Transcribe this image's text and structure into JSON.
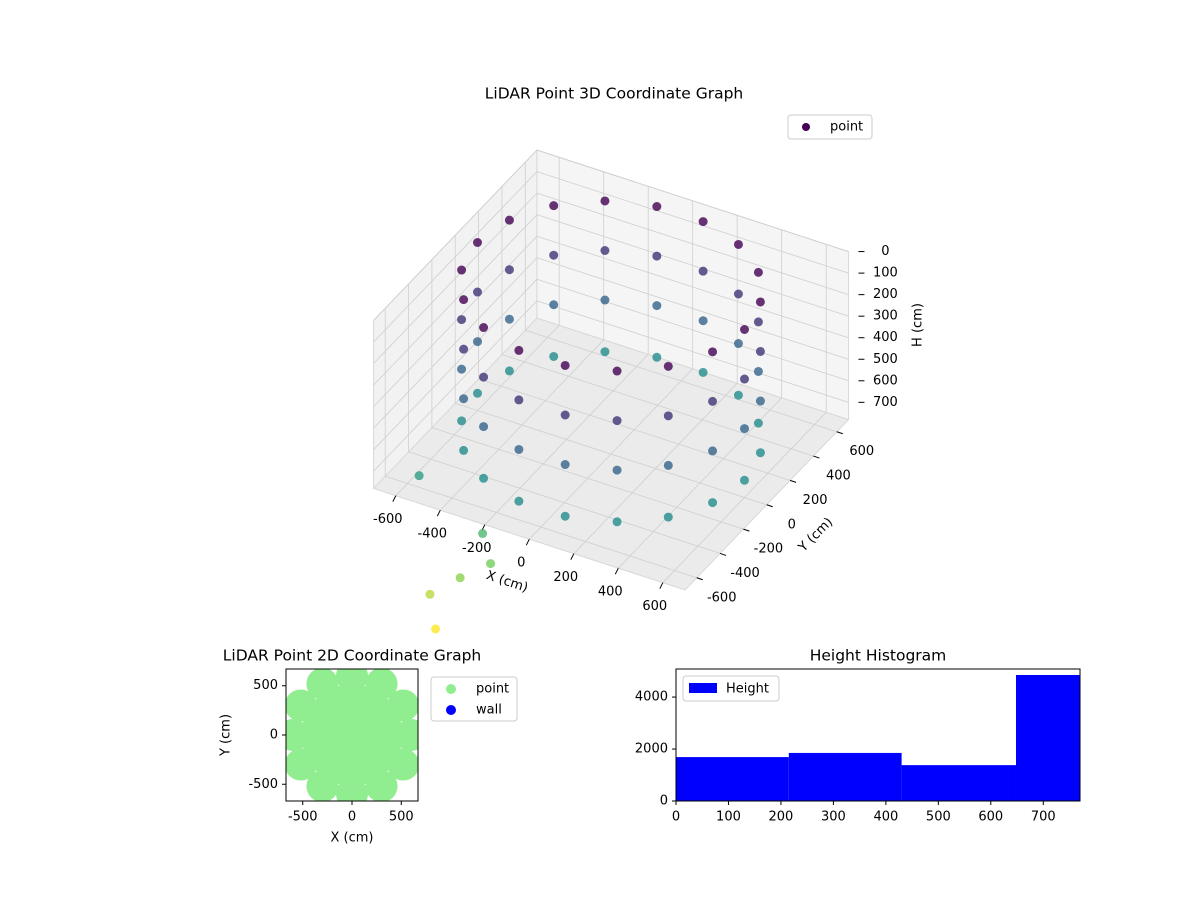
{
  "chart_data": [
    {
      "type": "scatter3d",
      "title": "LiDAR Point 3D Coordinate Graph",
      "xlabel": "X (cm)",
      "ylabel": "Y (cm)",
      "zlabel": "H (cm)",
      "series": [
        {
          "name": "point",
          "colormap": "viridis",
          "x": [
            600,
            564,
            460,
            300,
            104,
            -104,
            -300,
            -460,
            -564,
            -600,
            -564,
            -460,
            -300,
            -104,
            104,
            300,
            460,
            564,
            600,
            564,
            460,
            300,
            104,
            -104,
            -300,
            -460,
            -564,
            -600,
            -564,
            -460,
            -300,
            -104,
            104,
            300,
            460,
            564,
            600,
            564,
            460,
            300,
            104,
            -104,
            -300,
            -460,
            -564,
            -600,
            -564,
            -460,
            -300,
            -104,
            104,
            300,
            460,
            564,
            600,
            564,
            460,
            300,
            104,
            -104,
            -300,
            -460,
            -564,
            -600,
            -564,
            -460,
            -300,
            -104,
            104,
            300,
            460,
            564,
            -500,
            -520,
            -400,
            -300,
            -320,
            -600
          ],
          "y": [
            0,
            205,
            386,
            520,
            591,
            591,
            520,
            386,
            205,
            0,
            -205,
            -386,
            -520,
            -591,
            -591,
            -520,
            -386,
            -205,
            0,
            205,
            386,
            520,
            591,
            591,
            520,
            386,
            205,
            0,
            -205,
            -386,
            -520,
            -591,
            -591,
            -520,
            -386,
            -205,
            0,
            205,
            386,
            520,
            591,
            591,
            520,
            386,
            205,
            0,
            -205,
            -386,
            -520,
            -591,
            -591,
            -520,
            -386,
            -205,
            0,
            205,
            386,
            520,
            591,
            591,
            520,
            386,
            205,
            0,
            -205,
            -386,
            -520,
            -591,
            -591,
            -520,
            -386,
            -205,
            -550,
            -560,
            -530,
            -460,
            -490,
            -500
          ],
          "z": [
            0,
            0,
            0,
            0,
            0,
            0,
            0,
            0,
            0,
            0,
            0,
            0,
            0,
            0,
            0,
            0,
            0,
            0,
            230,
            230,
            230,
            230,
            230,
            230,
            230,
            230,
            230,
            230,
            230,
            230,
            230,
            230,
            230,
            230,
            230,
            230,
            460,
            460,
            460,
            460,
            460,
            460,
            460,
            460,
            460,
            460,
            460,
            460,
            460,
            460,
            460,
            460,
            460,
            460,
            700,
            700,
            700,
            700,
            700,
            700,
            700,
            700,
            700,
            700,
            700,
            700,
            700,
            700,
            700,
            700,
            700,
            700,
            1450,
            1290,
            1190,
            1130,
            980,
            800
          ]
        }
      ],
      "xlim": [
        -700,
        700
      ],
      "xticks": [
        -600,
        -400,
        -200,
        0,
        200,
        400,
        600
      ],
      "ylim": [
        -700,
        700
      ],
      "yticks": [
        -600,
        -400,
        -200,
        0,
        200,
        400,
        600
      ],
      "zlim": [
        780,
        0
      ],
      "zticks": [
        0,
        100,
        200,
        300,
        400,
        500,
        600,
        700
      ],
      "grid": true,
      "legend": "upper right"
    },
    {
      "type": "scatter",
      "title": "LiDAR Point 2D Coordinate Graph",
      "xlabel": "X (cm)",
      "ylabel": "Y (cm)",
      "series": [
        {
          "name": "point",
          "color": "#90ee90",
          "x": [
            600,
            400,
            200,
            520,
            346,
            173,
            300,
            200,
            100,
            0,
            0,
            0,
            -300,
            -200,
            -100,
            -520,
            -346,
            -173,
            -600,
            -400,
            -200,
            -520,
            -346,
            -173,
            -300,
            -200,
            -100,
            0,
            0,
            0,
            300,
            200,
            100,
            520,
            346,
            173,
            0
          ],
          "y": [
            0,
            0,
            0,
            300,
            200,
            100,
            520,
            346,
            173,
            600,
            400,
            200,
            520,
            346,
            173,
            300,
            200,
            100,
            0,
            0,
            0,
            -300,
            -200,
            -100,
            -520,
            -346,
            -173,
            -600,
            -400,
            -200,
            -520,
            -346,
            -173,
            -300,
            -200,
            -100,
            0
          ]
        },
        {
          "name": "wall",
          "color": "#0000ff",
          "x": [],
          "y": []
        }
      ],
      "xlim": [
        -670,
        670
      ],
      "xticks": [
        -500,
        0,
        500
      ],
      "ylim": [
        -670,
        670
      ],
      "yticks": [
        -500,
        0,
        500
      ],
      "legend": "outside upper right"
    },
    {
      "type": "histogram",
      "title": "Height Histogram",
      "bins": [
        0,
        215,
        430,
        648,
        770
      ],
      "series": [
        {
          "name": "Height",
          "color": "#0000ff",
          "values": [
            1690,
            1850,
            1380,
            4850
          ]
        }
      ],
      "xlim": [
        0,
        770
      ],
      "xticks": [
        0,
        100,
        200,
        300,
        400,
        500,
        600,
        700
      ],
      "ylim": [
        0,
        5080
      ],
      "yticks": [
        0,
        2000,
        4000
      ],
      "legend": "upper left"
    }
  ]
}
